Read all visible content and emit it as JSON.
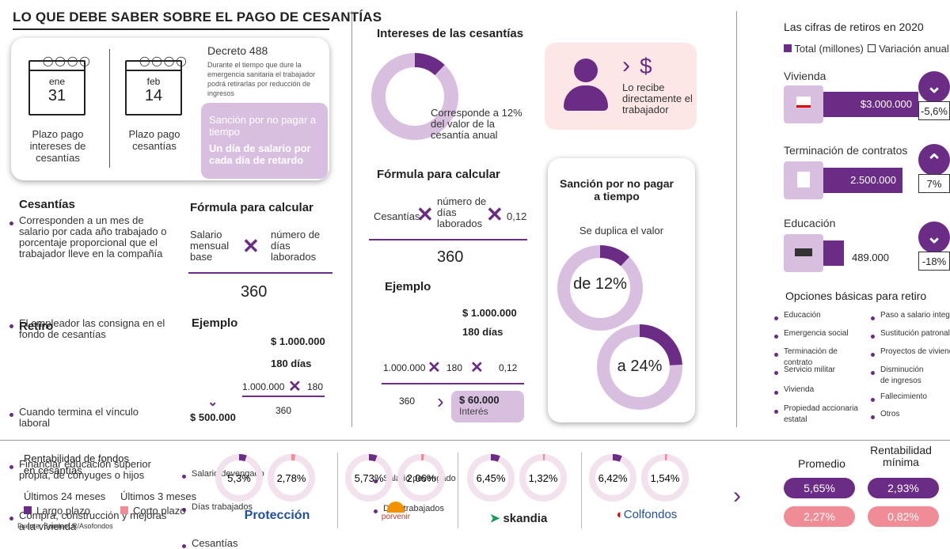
{
  "title": "LO QUE DEBE SABER SOBRE EL PAGO DE CESANTÍAS",
  "calendar": [
    {
      "month": "ene",
      "day": "31",
      "label": "Plazo pago intereses de cesantías"
    },
    {
      "month": "feb",
      "day": "14",
      "label": "Plazo pago cesantías"
    }
  ],
  "decreto": {
    "title": "Decreto 488",
    "text": "Durante el tiempo que dure la emergencia sanitaria el trabajador podrá retirarlas por reducción de ingresos",
    "sancion_title": "Sanción por no pagar a tiempo",
    "sancion_text": "Un día de salario por cada día de retardo"
  },
  "cesantias": {
    "title": "Cesantías",
    "items": [
      "Corresponden a un mes de salario por cada año trabajado o porcentaje proporcional que el trabajador lleve en la compañía",
      "El empleador las consigna en el fondo de cesantías"
    ]
  },
  "retiro": {
    "title": "Retiro",
    "items": [
      "Cuando termina el vínculo laboral",
      "Financiar educación superior propia, de cónyuges o hijos",
      "Compra, construcción y mejoras a la vivienda"
    ]
  },
  "formula1": {
    "title": "Fórmula para calcular",
    "left": "Salario mensual base",
    "right": "número de días laborados",
    "divisor": "360",
    "ejemplo_title": "Ejemplo",
    "row1_label": "Salario devengado",
    "row1_value": "$ 1.000.000",
    "row2_label": "Días trabajados",
    "row2_value": "180 días",
    "calc_label": "Cesantías",
    "calc_a": "1.000.000",
    "calc_b": "180",
    "calc_div": "360",
    "result": "$ 500.000"
  },
  "intereses": {
    "title": "Intereses de las cesantías",
    "pct": 12,
    "desc": "Corresponde a 12% del valor de la cesantía anual",
    "recibe": "Lo recibe directamente el trabajador",
    "dollar": "$"
  },
  "formula2": {
    "title": "Fórmula para calcular",
    "left": "Cesantías",
    "middle": "número de días laborados",
    "right": "0,12",
    "divisor": "360",
    "ejemplo_title": "Ejemplo",
    "row1_label": "Salario devengado",
    "row1_value": "$ 1.000.000",
    "row2_label": "Días trabajados",
    "row2_value": "180 días",
    "calc_a": "1.000.000",
    "calc_b": "180",
    "calc_c": "0,12",
    "calc_div": "360",
    "result": "$ 60.000",
    "result_label": "Interés"
  },
  "sancion": {
    "title": "Sanción por no pagar a tiempo",
    "text": "Se duplica el valor",
    "pct1_label": "de 12%",
    "pct1": 12,
    "pct2_label": "a 24%",
    "pct2": 24
  },
  "retiros2020": {
    "title": "Las cifras de retiros en 2020",
    "legend_total": "Total (millones)",
    "legend_var": "Variación anual",
    "items": [
      {
        "label": "Vivienda",
        "value": "$3.000.000",
        "amount": 3000000,
        "change": "-5,6%",
        "direction": "down"
      },
      {
        "label": "Terminación de contratos",
        "value": "2.500.000",
        "amount": 2500000,
        "change": "7%",
        "direction": "up"
      },
      {
        "label": "Educación",
        "value": "489.000",
        "amount": 489000,
        "change": "-18%",
        "direction": "down"
      }
    ],
    "opciones_title": "Opciones básicas para retiro",
    "opciones_col1": [
      "Educación",
      "Emergencia social",
      "Terminación de contrato",
      "Servicio militar",
      "Vivienda",
      "Propiedad accionaria estatal"
    ],
    "opciones_col2": [
      "Paso a salario integral",
      "Sustitución patronal",
      "Proyectos de vivienda",
      "Disminución de ingresos",
      "Fallecimiento",
      "Otros"
    ]
  },
  "rentabilidad": {
    "title": "Rentabilidad de fondos en cesantías",
    "legend_24": "Últimos 24 meses",
    "legend_3": "Últimos 3 meses",
    "largo": "Largo plazo",
    "corto": "Corto plazo",
    "source": "Fuente: SondeoLR/Asofondos",
    "fondos": [
      {
        "name": "Protección",
        "largo": "5,3%",
        "largo_v": 5.3,
        "corto": "2,78%",
        "corto_v": 2.78
      },
      {
        "name": "porvenir",
        "largo": "5,73%",
        "largo_v": 5.73,
        "corto": "2,06%",
        "corto_v": 2.06
      },
      {
        "name": "skandia",
        "largo": "6,45%",
        "largo_v": 6.45,
        "corto": "1,32%",
        "corto_v": 1.32
      },
      {
        "name": "Colfondos",
        "largo": "6,42%",
        "largo_v": 6.42,
        "corto": "1,54%",
        "corto_v": 1.54
      }
    ],
    "promedio_title": "Promedio",
    "minima_title": "Rentabilidad mínima",
    "promedio_largo": "5,65%",
    "promedio_corto": "2,27%",
    "minima_largo": "2,93%",
    "minima_corto": "0,82%"
  },
  "colors": {
    "purple": "#6a2c84",
    "lilac": "#d8bfe0",
    "pink": "#f08c96",
    "lightpink": "#fde6e6"
  }
}
